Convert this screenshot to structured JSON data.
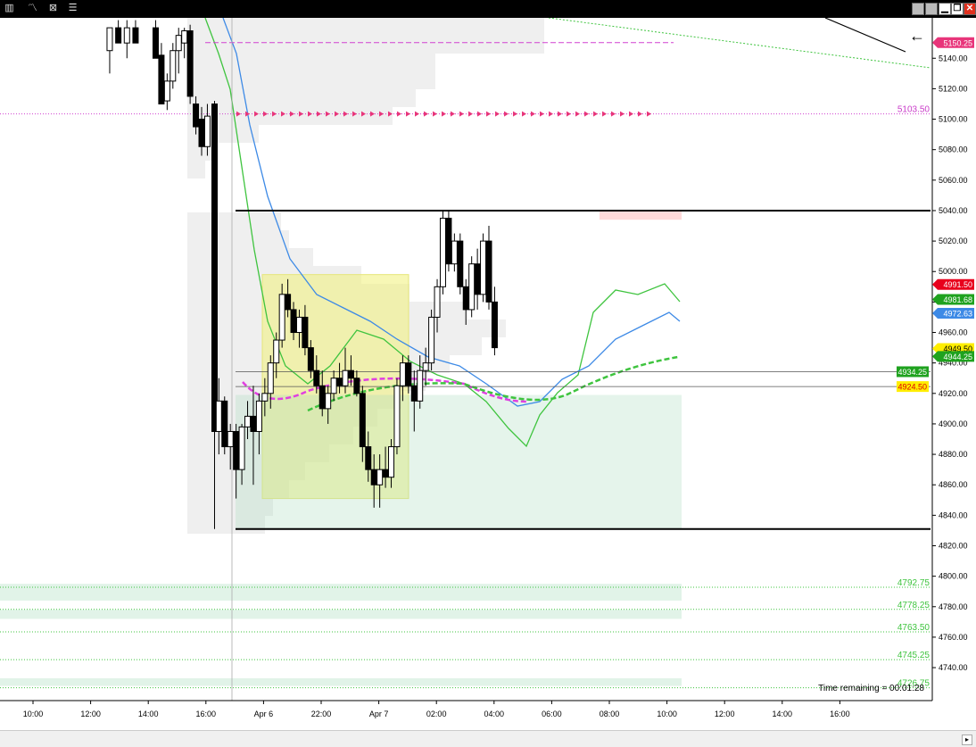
{
  "toolbar": {
    "icons": [
      "bar-chart-icon",
      "draw-line-icon",
      "chart-properties-icon",
      "indicator-list-icon"
    ],
    "window_buttons": [
      "grey-box-icon",
      "grey-box-icon",
      "minimize-icon",
      "restore-icon",
      "close-icon"
    ]
  },
  "colors": {
    "axis_label": "#000",
    "price_red": "#e8001c",
    "price_green": "#1fa21f",
    "price_blue": "#3d8ae6",
    "price_yellow": "#ffee00",
    "pink": "#e8357a",
    "magenta_text": "#c93cc9"
  },
  "chart_data": {
    "type": "candlestick",
    "y_axis": {
      "min": 4730,
      "max": 5160,
      "ticks": [
        4740,
        4760,
        4780,
        4800,
        4820,
        4840,
        4860,
        4880,
        4900,
        4920,
        4940,
        4960,
        4980,
        5000,
        5020,
        5040,
        5060,
        5080,
        5100,
        5120,
        5140
      ],
      "tick_labels": [
        "4740.00",
        "4760.00",
        "4780.00",
        "4800.00",
        "4820.00",
        "4840.00",
        "4860.00",
        "4880.00",
        "4900.00",
        "4920.00",
        "4940.00",
        "4960.00",
        "4980.00",
        "5000.00",
        "5020.00",
        "5040.00",
        "5060.00",
        "5080.00",
        "5100.00",
        "5120.00",
        "5140.00"
      ]
    },
    "x_axis": {
      "tick_labels": [
        "10:00",
        "12:00",
        "14:00",
        "16:00",
        "Apr 6",
        "22:00",
        "Apr 7",
        "02:00",
        "04:00",
        "06:00",
        "08:00",
        "10:00",
        "12:00",
        "14:00",
        "16:00"
      ]
    },
    "price_markers": [
      {
        "label": "5150.25",
        "value": 5150.25,
        "color": "#e8357a"
      },
      {
        "label": "4991.50",
        "value": 4991.5,
        "color": "#e8001c"
      },
      {
        "label": "4981.68",
        "value": 4981.68,
        "color": "#1fa21f"
      },
      {
        "label": "4972.63",
        "value": 4972.63,
        "color": "#3d8ae6"
      },
      {
        "label": "4949.50",
        "value": 4949.5,
        "color": "#ffee00"
      },
      {
        "label": "4944.25",
        "value": 4944.25,
        "color": "#1fa21f"
      }
    ],
    "inline_labels": [
      {
        "label": "5103.50",
        "value": 5103.5,
        "color": "#c93cc9"
      },
      {
        "label": "4934.25",
        "value": 4934.25,
        "color": "#1fa21f"
      },
      {
        "label": "4924.50",
        "value": 4924.5,
        "color": "#ffee00"
      },
      {
        "label": "4792.75",
        "value": 4792.75,
        "color": "#3fc43f"
      },
      {
        "label": "4778.25",
        "value": 4778.25,
        "color": "#3fc43f"
      },
      {
        "label": "4763.50",
        "value": 4763.5,
        "color": "#3fc43f"
      },
      {
        "label": "4745.25",
        "value": 4745.25,
        "color": "#3fc43f"
      },
      {
        "label": "4726.75",
        "value": 4726.75,
        "color": "#3fc43f"
      }
    ],
    "horizontal_lines": [
      5040,
      4831
    ],
    "candles": [
      {
        "x": 14,
        "o": 5145,
        "h": 5160,
        "l": 5130,
        "c": 5160
      },
      {
        "x": 17,
        "o": 5160,
        "h": 5165,
        "l": 5150,
        "c": 5150
      },
      {
        "x": 20,
        "o": 5150,
        "h": 5165,
        "l": 5140,
        "c": 5160
      },
      {
        "x": 23,
        "o": 5160,
        "h": 5165,
        "l": 5150,
        "c": 5150
      },
      {
        "x": 30,
        "o": 5160,
        "h": 5165,
        "l": 5140,
        "c": 5140
      },
      {
        "x": 32,
        "o": 5142,
        "h": 5150,
        "l": 5110,
        "c": 5110
      },
      {
        "x": 34,
        "o": 5112,
        "h": 5130,
        "l": 5106,
        "c": 5125
      },
      {
        "x": 36,
        "o": 5125,
        "h": 5150,
        "l": 5120,
        "c": 5145
      },
      {
        "x": 38,
        "o": 5145,
        "h": 5160,
        "l": 5130,
        "c": 5155
      },
      {
        "x": 40,
        "o": 5150,
        "h": 5160,
        "l": 5140,
        "c": 5158
      },
      {
        "x": 42,
        "o": 5158,
        "h": 5162,
        "l": 5110,
        "c": 5115
      },
      {
        "x": 44,
        "o": 5110,
        "h": 5115,
        "l": 5090,
        "c": 5095
      },
      {
        "x": 46,
        "o": 5100,
        "h": 5108,
        "l": 5076,
        "c": 5082
      },
      {
        "x": 48,
        "o": 5082,
        "h": 5110,
        "l": 5076,
        "c": 5102
      },
      {
        "x": 50.5,
        "o": 5110,
        "h": 5112,
        "l": 4831,
        "c": 4895
      },
      {
        "x": 52,
        "o": 4895,
        "h": 4930,
        "l": 4880,
        "c": 4915
      },
      {
        "x": 54,
        "o": 4915,
        "h": 4918,
        "l": 4880,
        "c": 4885
      },
      {
        "x": 56,
        "o": 4885,
        "h": 4900,
        "l": 4870,
        "c": 4895
      },
      {
        "x": 58,
        "o": 4895,
        "h": 4900,
        "l": 4851,
        "c": 4870
      },
      {
        "x": 60,
        "o": 4870,
        "h": 4900,
        "l": 4860,
        "c": 4898
      },
      {
        "x": 62,
        "o": 4898,
        "h": 4915,
        "l": 4890,
        "c": 4905
      },
      {
        "x": 64,
        "o": 4905,
        "h": 4925,
        "l": 4860,
        "c": 4895
      },
      {
        "x": 66,
        "o": 4895,
        "h": 4920,
        "l": 4880,
        "c": 4915
      },
      {
        "x": 68,
        "o": 4915,
        "h": 4930,
        "l": 4905,
        "c": 4920
      },
      {
        "x": 70,
        "o": 4920,
        "h": 4945,
        "l": 4910,
        "c": 4940
      },
      {
        "x": 72,
        "o": 4940,
        "h": 4960,
        "l": 4930,
        "c": 4955
      },
      {
        "x": 74,
        "o": 4955,
        "h": 4992,
        "l": 4950,
        "c": 4985
      },
      {
        "x": 76,
        "o": 4985,
        "h": 4995,
        "l": 4970,
        "c": 4975
      },
      {
        "x": 78,
        "o": 4975,
        "h": 4980,
        "l": 4955,
        "c": 4960
      },
      {
        "x": 80,
        "o": 4960,
        "h": 4975,
        "l": 4950,
        "c": 4970
      },
      {
        "x": 82,
        "o": 4970,
        "h": 4978,
        "l": 4945,
        "c": 4950
      },
      {
        "x": 84,
        "o": 4950,
        "h": 4955,
        "l": 4930,
        "c": 4935
      },
      {
        "x": 86,
        "o": 4935,
        "h": 4945,
        "l": 4920,
        "c": 4925
      },
      {
        "x": 88,
        "o": 4925,
        "h": 4935,
        "l": 4905,
        "c": 4910
      },
      {
        "x": 90,
        "o": 4910,
        "h": 4925,
        "l": 4900,
        "c": 4920
      },
      {
        "x": 92,
        "o": 4920,
        "h": 4935,
        "l": 4915,
        "c": 4930
      },
      {
        "x": 94,
        "o": 4930,
        "h": 4940,
        "l": 4920,
        "c": 4925
      },
      {
        "x": 96,
        "o": 4925,
        "h": 4950,
        "l": 4920,
        "c": 4935
      },
      {
        "x": 98,
        "o": 4935,
        "h": 4945,
        "l": 4925,
        "c": 4930
      },
      {
        "x": 100,
        "o": 4930,
        "h": 4935,
        "l": 4918,
        "c": 4920
      },
      {
        "x": 102,
        "o": 4920,
        "h": 4925,
        "l": 4875,
        "c": 4885
      },
      {
        "x": 104,
        "o": 4885,
        "h": 4895,
        "l": 4862,
        "c": 4870
      },
      {
        "x": 106,
        "o": 4870,
        "h": 4880,
        "l": 4845,
        "c": 4860
      },
      {
        "x": 108,
        "o": 4860,
        "h": 4880,
        "l": 4845,
        "c": 4870
      },
      {
        "x": 110,
        "o": 4870,
        "h": 4885,
        "l": 4858,
        "c": 4865
      },
      {
        "x": 112,
        "o": 4865,
        "h": 4890,
        "l": 4858,
        "c": 4885
      },
      {
        "x": 114,
        "o": 4885,
        "h": 4930,
        "l": 4880,
        "c": 4925
      },
      {
        "x": 116,
        "o": 4925,
        "h": 4945,
        "l": 4915,
        "c": 4940
      },
      {
        "x": 118,
        "o": 4940,
        "h": 4945,
        "l": 4920,
        "c": 4925
      },
      {
        "x": 120,
        "o": 4925,
        "h": 4935,
        "l": 4895,
        "c": 4915
      },
      {
        "x": 122,
        "o": 4915,
        "h": 4945,
        "l": 4910,
        "c": 4935
      },
      {
        "x": 124,
        "o": 4935,
        "h": 4950,
        "l": 4925,
        "c": 4940
      },
      {
        "x": 126,
        "o": 4940,
        "h": 4975,
        "l": 4935,
        "c": 4970
      },
      {
        "x": 128,
        "o": 4970,
        "h": 4995,
        "l": 4960,
        "c": 4990
      },
      {
        "x": 130,
        "o": 4990,
        "h": 5040,
        "l": 4985,
        "c": 5035
      },
      {
        "x": 132,
        "o": 5035,
        "h": 5040,
        "l": 5000,
        "c": 5005
      },
      {
        "x": 134,
        "o": 5005,
        "h": 5025,
        "l": 5000,
        "c": 5020
      },
      {
        "x": 136,
        "o": 5020,
        "h": 5025,
        "l": 4985,
        "c": 4990
      },
      {
        "x": 138,
        "o": 4990,
        "h": 4995,
        "l": 4965,
        "c": 4975
      },
      {
        "x": 140,
        "o": 4975,
        "h": 5010,
        "l": 4970,
        "c": 5005
      },
      {
        "x": 142,
        "o": 5005,
        "h": 5015,
        "l": 4975,
        "c": 4985
      },
      {
        "x": 144,
        "o": 4985,
        "h": 5025,
        "l": 4980,
        "c": 5020
      },
      {
        "x": 146,
        "o": 5020,
        "h": 5030,
        "l": 4975,
        "c": 4980
      },
      {
        "x": 148,
        "o": 4980,
        "h": 4990,
        "l": 4945,
        "c": 4950
      }
    ]
  },
  "time_remaining": "Time remaining = 00:01:28"
}
